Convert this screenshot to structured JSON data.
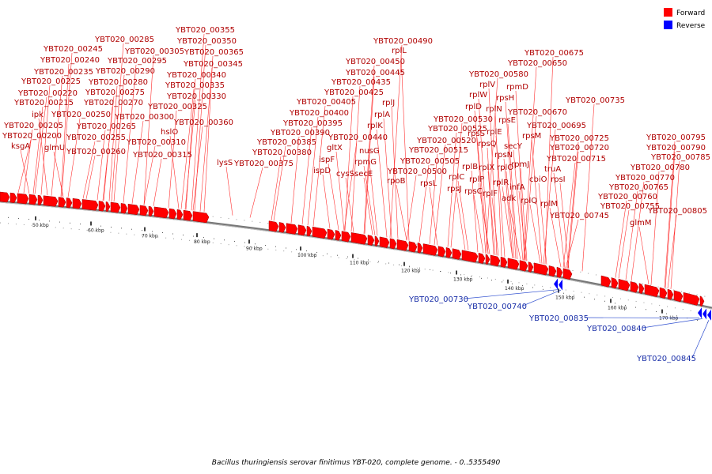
{
  "caption": "Bacillus thuringiensis serovar finitimus YBT-020, complete genome. - 0..5355490",
  "legend": [
    {
      "label": "Forward",
      "color": "#ff0000"
    },
    {
      "label": "Reverse",
      "color": "#0000ff"
    }
  ],
  "colors": {
    "forward": "#ff0000",
    "reverse": "#0000ff",
    "forward_line": "#ff3030",
    "reverse_line": "#3050d0"
  },
  "scale_ticks": [
    "50 kbp",
    "60 kbp",
    "70 kbp",
    "80 kbp",
    "90 kbp",
    "100 kbp",
    "110 kbp",
    "120 kbp",
    "130 kbp",
    "140 kbp",
    "150 kbp",
    "160 kbp",
    "170 kbp"
  ],
  "forward_labels": [
    "YBT020_00355",
    "YBT020_00285",
    "YBT020_00350",
    "YBT020_00245",
    "YBT020_00305",
    "YBT020_00365",
    "YBT020_00240",
    "YBT020_00295",
    "YBT020_00345",
    "YBT020_00235",
    "YBT020_00290",
    "YBT020_00340",
    "YBT020_00225",
    "YBT020_00280",
    "YBT020_00335",
    "YBT020_00220",
    "YBT020_00275",
    "YBT020_00330",
    "YBT020_00215",
    "YBT020_00270",
    "YBT020_00325",
    "ipk",
    "YBT020_00250",
    "YBT020_00300",
    "hslO",
    "YBT020_00360",
    "YBT020_00205",
    "YBT020_00265",
    "YBT020_00200",
    "YBT020_00255",
    "YBT020_00310",
    "ksgA",
    "glmU",
    "YBT020_00260",
    "YBT020_00315",
    "lysS",
    "YBT020_00490",
    "rplL",
    "YBT020_00450",
    "YBT020_00445",
    "YBT020_00435",
    "YBT020_00425",
    "rplJ",
    "YBT020_00405",
    "rplA",
    "YBT020_00400",
    "YBT020_00395",
    "rplK",
    "YBT020_00390",
    "YBT020_00440",
    "YBT020_00385",
    "gltX",
    "nusG",
    "YBT020_00380",
    "ispF",
    "rpmG",
    "YBT020_00375",
    "ispD",
    "cysS",
    "secE",
    "YBT020_00500",
    "rpoB",
    "YBT020_00675",
    "YBT020_00650",
    "YBT020_00580",
    "rplV",
    "rpmD",
    "rplW",
    "rpsH",
    "rplD",
    "rplN",
    "YBT020_00670",
    "YBT020_00530",
    "rplE",
    "rpsE",
    "YBT020_00525",
    "rpsS",
    "rpsQ",
    "YBT020_00695",
    "YBT020_00520",
    "rpsN",
    "secY",
    "rpsM",
    "YBT020_00515",
    "rplB",
    "rplX",
    "rplO",
    "YBT020_00720",
    "YBT020_00505",
    "rplC",
    "rplP",
    "rpmJ",
    "YBT020_00715",
    "rpsL",
    "rpsJ",
    "rpsC",
    "rplR",
    "truA",
    "rplF",
    "infA",
    "cbiO",
    "rpsI",
    "adk",
    "rplQ",
    "rplM",
    "YBT020_00745",
    "YBT020_00735",
    "YBT020_00725",
    "YBT020_00795",
    "YBT020_00790",
    "YBT020_00785",
    "YBT020_00780",
    "YBT020_00770",
    "YBT020_00765",
    "YBT020_00760",
    "YBT020_00755",
    "glmM",
    "YBT020_00805"
  ],
  "reverse_labels": [
    "YBT020_00730",
    "YBT020_00740",
    "YBT020_00835",
    "YBT020_00840",
    "YBT020_00845"
  ]
}
